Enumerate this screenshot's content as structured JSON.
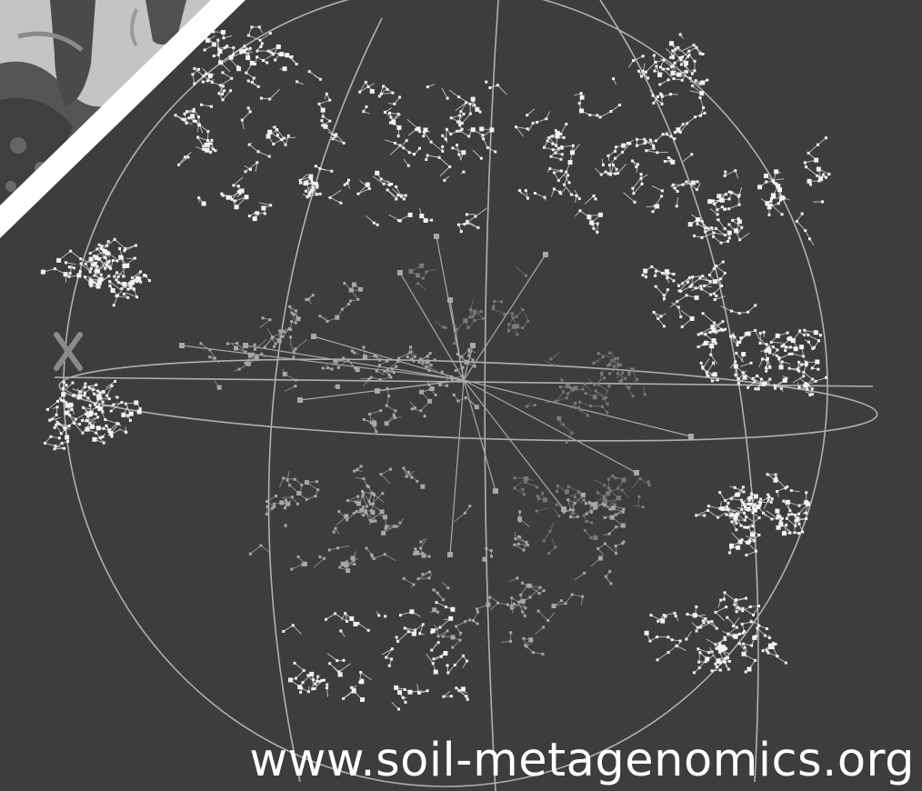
{
  "caption": {
    "url": "www.soil-metagenomics.org"
  },
  "colors": {
    "background": "#3d3d3f",
    "corner_band": "#ffffff",
    "photo_soil": "#5f5f5f",
    "photo_sky": "#b9b9b9",
    "node_bright": "#f2f2f2",
    "node_mid": "#a8a8a8",
    "node_dim": "#7a7a7a",
    "grid_line": "#b0b0b0",
    "marker_x": "#8a8a8a"
  },
  "icons": {
    "globe": "phylogenetic-sphere-icon",
    "marker": "x-marker-icon"
  }
}
